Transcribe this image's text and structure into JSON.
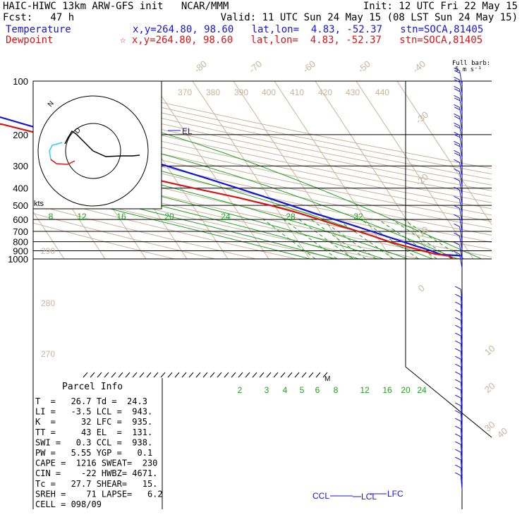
{
  "header": {
    "line1_left": "HAIC-HIWC 13km ARW-GFS init   NCAR/MMM",
    "line1_right": "Init: 12 UTC Fri 22 May 15",
    "line2_left": "Fcst:   47 h",
    "line2_right": "Valid: 11 UTC Sun 24 May 15 (08 LST Sun 24 May 15)",
    "temp_label": "Temperature",
    "temp_info": "x,y=264.80, 98.60   lat,lon=  4.83, -52.37   stn=SOCA,81405",
    "dew_label": "Dewpoint",
    "dew_info": "☆ x,y=264.80, 98.60   lat,lon=  4.83, -52.37   stn=SOCA,81405",
    "barb_note_1": "Full barb:",
    "barb_note_2": "5 m s⁻¹"
  },
  "colors": {
    "temperature": "#1515d8",
    "dewpoint": "#d81515",
    "mixing_ratio": "#22a022",
    "adiabat": "#c8b49a",
    "isobar": "#000000"
  },
  "parcel_info": {
    "title": "Parcel Info",
    "rows": [
      "T  =   26.7 Td =  24.3",
      "LI =   -3.5 LCL =  943.",
      "K  =     32 LFC =  935.",
      "TT =     43 EL  =  131.",
      "SWI =   0.3 CCL =  938.",
      "PW =   5.55 YGP =   0.1",
      "CAPE =  1216 SWEAT=  230",
      "CIN =    -22 HWBZ= 4671.",
      "Tc =   27.7 SHEAR=   15.",
      "SREH =    71 LAPSE=   6.2",
      "CELL = 098/09"
    ]
  },
  "chart_data": {
    "type": "line",
    "title": "HAIC-HIWC 13km ARW-GFS init",
    "yscale": "log",
    "pressure_levels": [
      "100",
      "200",
      "300",
      "400",
      "500",
      "600",
      "700",
      "800",
      "900",
      "1000"
    ],
    "temp_axis_labels": [
      "-80",
      "-70",
      "-60",
      "-50",
      "-40",
      "-30",
      "-20",
      "-10",
      "0",
      "10",
      "20",
      "30",
      "40"
    ],
    "mixing_ratio_top": [
      "8",
      "12",
      "16",
      "20",
      "24",
      "28",
      "32"
    ],
    "mixing_ratio_bottom": [
      "2",
      "3",
      "4",
      "5",
      "6",
      "8",
      "12",
      "16",
      "20",
      "24"
    ],
    "theta_labels": [
      "370",
      "380",
      "390",
      "400",
      "410",
      "420",
      "430",
      "440"
    ],
    "theta_side_labels": [
      "290",
      "280",
      "270"
    ],
    "level_markers": [
      "EL",
      "CCL",
      "LCL",
      "LFC"
    ],
    "hodograph_labels": [
      "kts",
      "N",
      "D"
    ],
    "series": [
      {
        "name": "Temperature",
        "color": "#1515d8",
        "points": [
          {
            "p": 960,
            "t": 27.5
          },
          {
            "p": 945,
            "t": 22.8
          },
          {
            "p": 925,
            "t": 22.0
          },
          {
            "p": 900,
            "t": 21.0
          },
          {
            "p": 870,
            "t": 19.5
          },
          {
            "p": 850,
            "t": 18.2
          },
          {
            "p": 800,
            "t": 15.5
          },
          {
            "p": 750,
            "t": 12.6
          },
          {
            "p": 700,
            "t": 9.6
          },
          {
            "p": 650,
            "t": 6.2
          },
          {
            "p": 600,
            "t": 2.4
          },
          {
            "p": 550,
            "t": -1.8
          },
          {
            "p": 500,
            "t": -6.0
          },
          {
            "p": 450,
            "t": -10.8
          },
          {
            "p": 400,
            "t": -16.2
          },
          {
            "p": 350,
            "t": -22.5
          },
          {
            "p": 300,
            "t": -30.0
          },
          {
            "p": 250,
            "t": -39.5
          },
          {
            "p": 200,
            "t": -51.0
          },
          {
            "p": 175,
            "t": -58.0
          },
          {
            "p": 150,
            "t": -66.0
          },
          {
            "p": 131,
            "t": -73.0
          },
          {
            "p": 120,
            "t": -78.5
          },
          {
            "p": 110,
            "t": -79.5
          },
          {
            "p": 100,
            "t": -80.5
          }
        ]
      },
      {
        "name": "Dewpoint",
        "color": "#d81515",
        "points": [
          {
            "p": 1000,
            "t": 25.0
          },
          {
            "p": 960,
            "t": 24.5
          },
          {
            "p": 940,
            "t": 21.5
          },
          {
            "p": 900,
            "t": 19.0
          },
          {
            "p": 850,
            "t": 15.5
          },
          {
            "p": 800,
            "t": 12.2
          },
          {
            "p": 750,
            "t": 9.5
          },
          {
            "p": 700,
            "t": 6.3
          },
          {
            "p": 650,
            "t": 2.5
          },
          {
            "p": 600,
            "t": -1.3
          },
          {
            "p": 550,
            "t": -5.5
          },
          {
            "p": 500,
            "t": -11.0
          },
          {
            "p": 450,
            "t": -18.0
          },
          {
            "p": 400,
            "t": -27.0
          },
          {
            "p": 350,
            "t": -36.5
          },
          {
            "p": 330,
            "t": -37.5
          },
          {
            "p": 300,
            "t": -39.0
          },
          {
            "p": 270,
            "t": -38.0
          },
          {
            "p": 250,
            "t": -42.0
          },
          {
            "p": 225,
            "t": -48.5
          },
          {
            "p": 200,
            "t": -55.0
          },
          {
            "p": 175,
            "t": -63.5
          },
          {
            "p": 160,
            "t": -73.5
          },
          {
            "p": 150,
            "t": -77.0
          },
          {
            "p": 130,
            "t": -78.5
          },
          {
            "p": 115,
            "t": -82.5
          },
          {
            "p": 100,
            "t": -88.0
          }
        ]
      }
    ]
  }
}
